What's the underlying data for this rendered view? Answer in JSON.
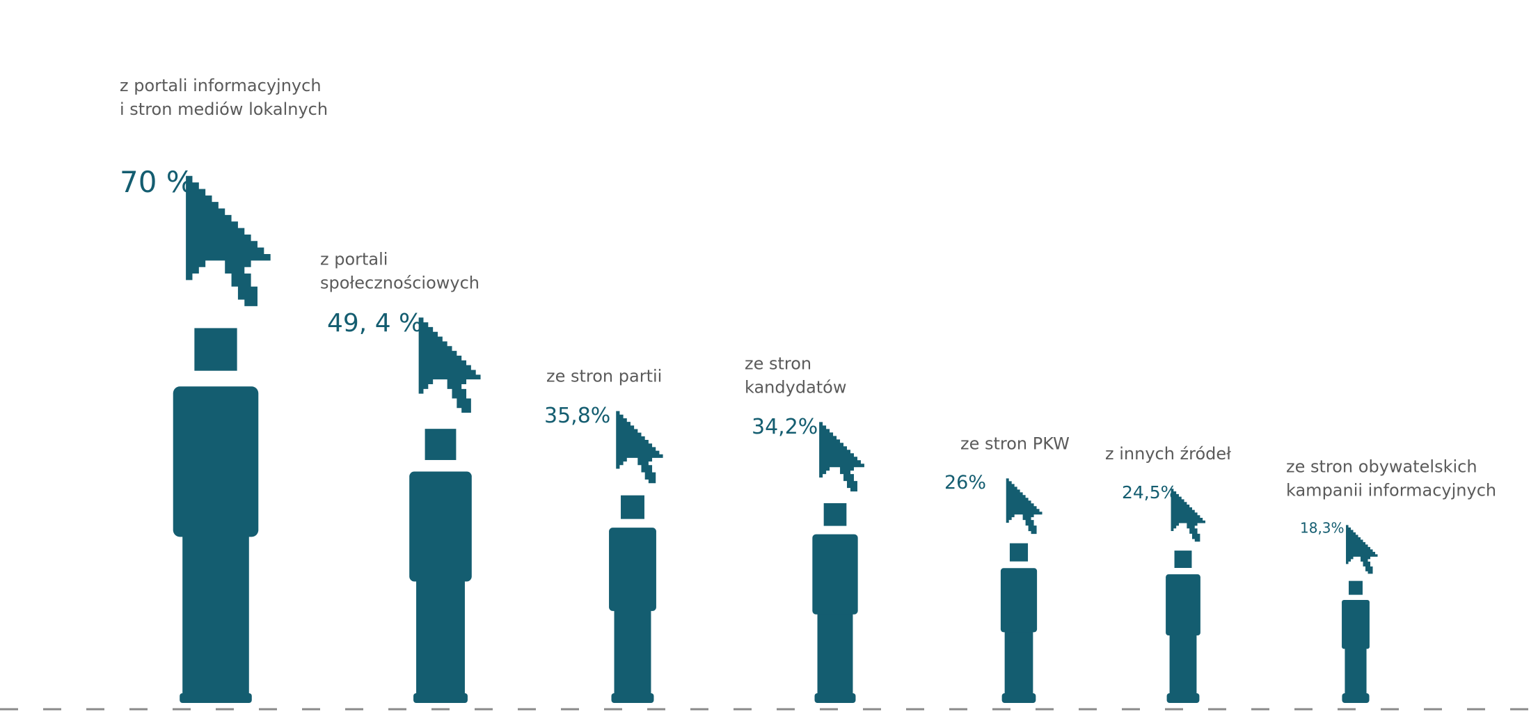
{
  "chart_data": {
    "type": "bar",
    "title": "",
    "xlabel": "",
    "ylabel": "",
    "ylim": [
      0,
      70
    ],
    "grid": false,
    "legend": "none",
    "colors": {
      "figure": "#145d70",
      "label_text": "#5a5a5a",
      "baseline": "#8a8a8a"
    },
    "categories": [
      "z portali informacyjnych i stron mediów lokalnych",
      "z portali społecznościowych",
      "ze stron partii",
      "ze stron kandydatów",
      "ze stron PKW",
      "z innych źródeł",
      "ze stron obywatelskich kampanii informacyjnych"
    ],
    "values": [
      70,
      49.4,
      35.8,
      34.2,
      26,
      24.5,
      18.3
    ],
    "items": [
      {
        "label_lines": [
          "z portali informacyjnych",
          "i stron mediów lokalnych"
        ],
        "value": 70,
        "value_label": "70 %"
      },
      {
        "label_lines": [
          "z portali",
          "społecznościowych"
        ],
        "value": 49.4,
        "value_label": "49, 4 %"
      },
      {
        "label_lines": [
          "ze stron partii"
        ],
        "value": 35.8,
        "value_label": "35,8%"
      },
      {
        "label_lines": [
          "ze stron",
          "kandydatów"
        ],
        "value": 34.2,
        "value_label": "34,2%"
      },
      {
        "label_lines": [
          "ze stron PKW"
        ],
        "value": 26,
        "value_label": "26%"
      },
      {
        "label_lines": [
          "z innych źródeł"
        ],
        "value": 24.5,
        "value_label": "24,5%"
      },
      {
        "label_lines": [
          "ze stron obywatelskich",
          "kampanii informacyjnych"
        ],
        "value": 18.3,
        "value_label": "18,3%"
      }
    ],
    "figure_icon": "person-icon",
    "pointer_icon": "cursor-arrow-icon"
  }
}
